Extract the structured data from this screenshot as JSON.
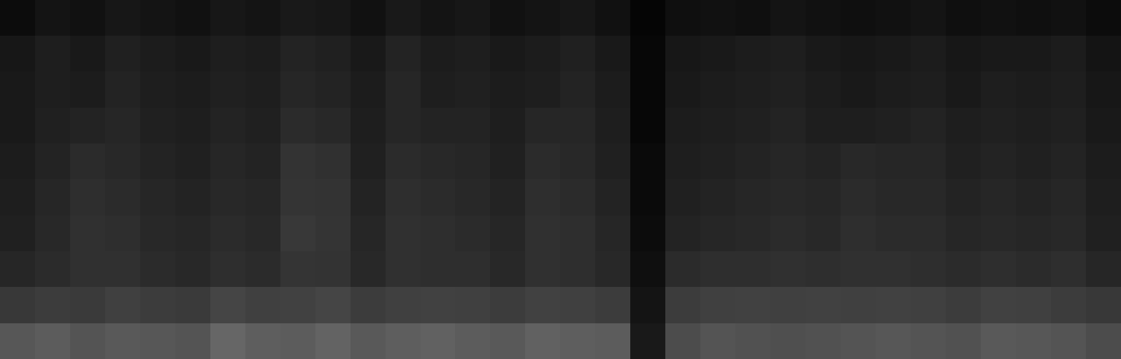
{
  "chart_data": {
    "type": "heatmap",
    "color": "gray",
    "tick_labels": false,
    "zlim": [
      0,
      1
    ],
    "cells": [
      [
        0.05,
        0.08,
        0.07,
        0.09,
        0.08,
        0.07,
        0.09,
        0.08,
        0.1,
        0.09,
        0.07,
        0.1,
        0.08,
        0.09,
        0.07,
        0.08,
        0.09,
        0.07,
        0.02,
        0.06,
        0.07,
        0.06,
        0.08,
        0.07,
        0.06,
        0.07,
        0.08,
        0.06,
        0.07,
        0.06,
        0.07,
        0.05
      ],
      [
        0.09,
        0.12,
        0.1,
        0.13,
        0.11,
        0.1,
        0.12,
        0.11,
        0.14,
        0.13,
        0.1,
        0.14,
        0.11,
        0.12,
        0.1,
        0.11,
        0.13,
        0.1,
        0.03,
        0.09,
        0.1,
        0.11,
        0.12,
        0.1,
        0.09,
        0.1,
        0.11,
        0.09,
        0.1,
        0.1,
        0.11,
        0.08
      ],
      [
        0.1,
        0.12,
        0.11,
        0.14,
        0.12,
        0.11,
        0.13,
        0.12,
        0.15,
        0.14,
        0.11,
        0.15,
        0.12,
        0.13,
        0.11,
        0.12,
        0.14,
        0.11,
        0.03,
        0.1,
        0.11,
        0.12,
        0.13,
        0.11,
        0.1,
        0.11,
        0.12,
        0.1,
        0.12,
        0.11,
        0.12,
        0.09
      ],
      [
        0.1,
        0.13,
        0.14,
        0.15,
        0.13,
        0.12,
        0.14,
        0.13,
        0.17,
        0.16,
        0.12,
        0.15,
        0.14,
        0.14,
        0.12,
        0.15,
        0.15,
        0.12,
        0.03,
        0.11,
        0.12,
        0.13,
        0.14,
        0.12,
        0.12,
        0.13,
        0.14,
        0.12,
        0.13,
        0.12,
        0.13,
        0.1
      ],
      [
        0.11,
        0.14,
        0.17,
        0.16,
        0.14,
        0.13,
        0.15,
        0.14,
        0.2,
        0.19,
        0.13,
        0.17,
        0.16,
        0.15,
        0.13,
        0.17,
        0.16,
        0.13,
        0.04,
        0.12,
        0.13,
        0.14,
        0.15,
        0.14,
        0.16,
        0.15,
        0.15,
        0.13,
        0.14,
        0.13,
        0.14,
        0.11
      ],
      [
        0.12,
        0.15,
        0.18,
        0.17,
        0.15,
        0.14,
        0.16,
        0.15,
        0.21,
        0.2,
        0.14,
        0.18,
        0.17,
        0.16,
        0.14,
        0.18,
        0.17,
        0.14,
        0.04,
        0.13,
        0.14,
        0.15,
        0.16,
        0.15,
        0.17,
        0.16,
        0.16,
        0.14,
        0.15,
        0.14,
        0.15,
        0.12
      ],
      [
        0.13,
        0.16,
        0.19,
        0.18,
        0.16,
        0.15,
        0.17,
        0.16,
        0.22,
        0.21,
        0.15,
        0.19,
        0.18,
        0.17,
        0.15,
        0.19,
        0.18,
        0.15,
        0.05,
        0.14,
        0.15,
        0.16,
        0.17,
        0.16,
        0.18,
        0.17,
        0.17,
        0.15,
        0.16,
        0.15,
        0.16,
        0.13
      ],
      [
        0.15,
        0.17,
        0.19,
        0.19,
        0.17,
        0.16,
        0.18,
        0.17,
        0.21,
        0.2,
        0.16,
        0.19,
        0.18,
        0.18,
        0.16,
        0.19,
        0.18,
        0.16,
        0.06,
        0.17,
        0.18,
        0.18,
        0.19,
        0.18,
        0.19,
        0.19,
        0.18,
        0.17,
        0.18,
        0.17,
        0.18,
        0.15
      ],
      [
        0.22,
        0.24,
        0.23,
        0.25,
        0.24,
        0.23,
        0.27,
        0.25,
        0.26,
        0.27,
        0.24,
        0.25,
        0.26,
        0.25,
        0.24,
        0.26,
        0.25,
        0.24,
        0.08,
        0.24,
        0.25,
        0.26,
        0.25,
        0.26,
        0.25,
        0.26,
        0.25,
        0.24,
        0.26,
        0.25,
        0.24,
        0.22
      ],
      [
        0.34,
        0.36,
        0.33,
        0.35,
        0.34,
        0.33,
        0.4,
        0.37,
        0.36,
        0.39,
        0.35,
        0.37,
        0.38,
        0.36,
        0.35,
        0.38,
        0.37,
        0.36,
        0.1,
        0.3,
        0.33,
        0.32,
        0.31,
        0.32,
        0.33,
        0.34,
        0.33,
        0.32,
        0.35,
        0.34,
        0.33,
        0.3
      ]
    ]
  }
}
